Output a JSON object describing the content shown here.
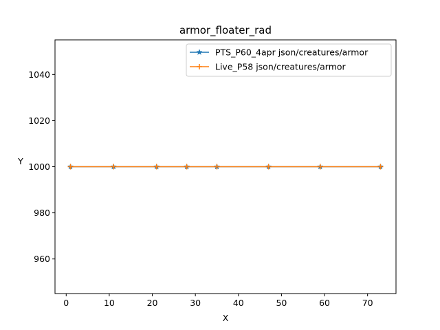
{
  "chart_data": {
    "type": "line",
    "title": "armor_floater_rad",
    "xlabel": "X",
    "ylabel": "Y",
    "xlim": [
      -2.6,
      76.6
    ],
    "ylim": [
      945,
      1055
    ],
    "xticks": [
      0,
      10,
      20,
      30,
      40,
      50,
      60,
      70
    ],
    "yticks": [
      960,
      980,
      1000,
      1020,
      1040
    ],
    "grid": false,
    "legend_position": "top-right",
    "series": [
      {
        "name": "PTS_P60_4apr json/creatures/armor",
        "color": "#1f77b4",
        "marker": "star",
        "x": [
          1,
          11,
          21,
          28,
          35,
          47,
          59,
          73
        ],
        "y": [
          1000,
          1000,
          1000,
          1000,
          1000,
          1000,
          1000,
          1000
        ]
      },
      {
        "name": "Live_P58 json/creatures/armor",
        "color": "#ff7f0e",
        "marker": "plus",
        "x": [
          1,
          11,
          21,
          28,
          35,
          47,
          59,
          73
        ],
        "y": [
          1000,
          1000,
          1000,
          1000,
          1000,
          1000,
          1000,
          1000
        ]
      }
    ]
  }
}
